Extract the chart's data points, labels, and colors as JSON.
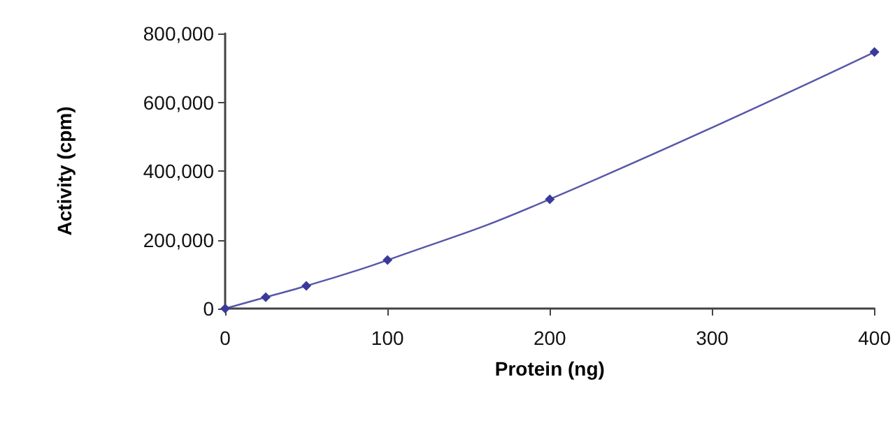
{
  "chart_data": {
    "type": "line",
    "xlabel": "Protein (ng)",
    "ylabel": "Activity (cpm)",
    "x": [
      0,
      25,
      50,
      100,
      200,
      400
    ],
    "series": [
      {
        "color": "#3a3a9a",
        "values": [
          0,
          33000,
          66000,
          141000,
          318000,
          746000
        ]
      }
    ],
    "xlim": [
      0,
      400
    ],
    "xticks": [
      0,
      100,
      200,
      300,
      400
    ],
    "ylim": [
      0,
      800000
    ],
    "yticks": [
      0,
      {
        "value": 200000,
        "label": "200,000"
      },
      {
        "value": 400000,
        "label": "400,000"
      },
      {
        "value": 600000,
        "label": "600,000"
      },
      {
        "value": 800000,
        "label": "800,000"
      }
    ],
    "grid": false,
    "marker": "diamond",
    "line_style": "solid"
  }
}
